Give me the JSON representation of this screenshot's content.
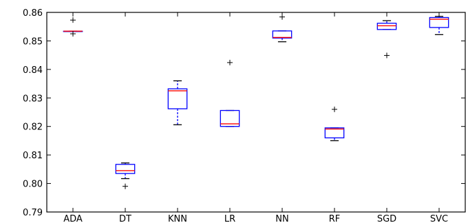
{
  "chart_data": {
    "type": "boxplot",
    "title": "",
    "xlabel": "",
    "ylabel": "",
    "ylim": [
      0.79,
      0.86
    ],
    "yticks": [
      "0.79",
      "0.80",
      "0.81",
      "0.82",
      "0.83",
      "0.84",
      "0.85",
      "0.86"
    ],
    "grid": false,
    "colors": {
      "box": "#0000ff",
      "median": "#ff0000",
      "flier": "#000000",
      "axis": "#000000"
    },
    "categories": [
      "ADA",
      "DT",
      "KNN",
      "LR",
      "NN",
      "RF",
      "SGD",
      "SVC"
    ],
    "boxes": [
      {
        "label": "ADA",
        "whislo": 0.8534,
        "q1": 0.8534,
        "med": 0.8534,
        "q3": 0.8534,
        "whishi": 0.8534,
        "fliers": [
          0.8573,
          0.8525
        ]
      },
      {
        "label": "DT",
        "whislo": 0.8017,
        "q1": 0.8035,
        "med": 0.8045,
        "q3": 0.8067,
        "whishi": 0.8072,
        "fliers": [
          0.799
        ]
      },
      {
        "label": "KNN",
        "whislo": 0.8206,
        "q1": 0.8262,
        "med": 0.8325,
        "q3": 0.8332,
        "whishi": 0.836,
        "fliers": []
      },
      {
        "label": "LR",
        "whislo": 0.82,
        "q1": 0.82,
        "med": 0.8209,
        "q3": 0.8256,
        "whishi": 0.8256,
        "fliers": [
          0.8424
        ]
      },
      {
        "label": "NN",
        "whislo": 0.8497,
        "q1": 0.851,
        "med": 0.8512,
        "q3": 0.8535,
        "whishi": 0.8535,
        "fliers": [
          0.8584
        ]
      },
      {
        "label": "RF",
        "whislo": 0.815,
        "q1": 0.816,
        "med": 0.8191,
        "q3": 0.8195,
        "whishi": 0.8195,
        "fliers": [
          0.826
        ]
      },
      {
        "label": "SGD",
        "whislo": 0.854,
        "q1": 0.854,
        "med": 0.8553,
        "q3": 0.8562,
        "whishi": 0.8571,
        "fliers": [
          0.8449
        ]
      },
      {
        "label": "SVC",
        "whislo": 0.8522,
        "q1": 0.8547,
        "med": 0.8576,
        "q3": 0.8582,
        "whishi": 0.8586,
        "fliers": []
      }
    ]
  }
}
